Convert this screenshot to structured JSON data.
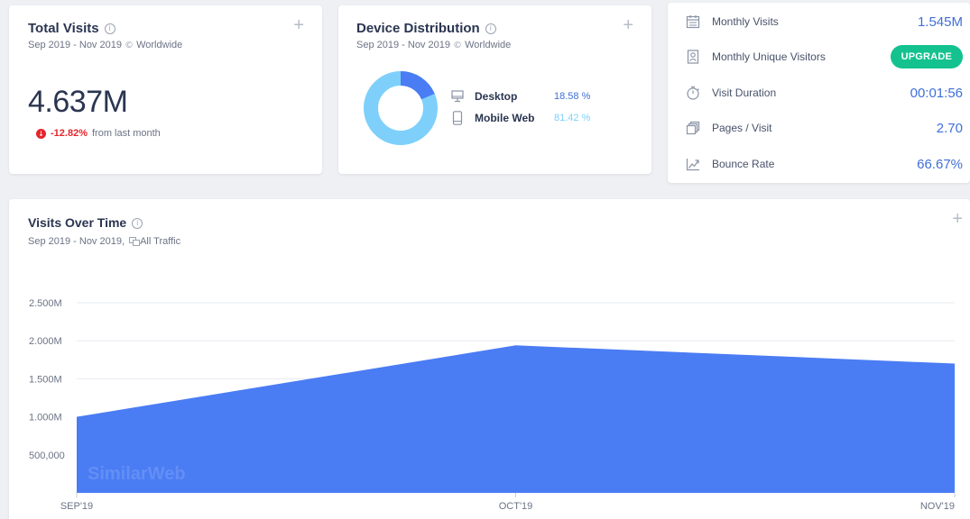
{
  "total_visits": {
    "title": "Total Visits",
    "date_range": "Sep 2019 - Nov 2019",
    "region": "Worldwide",
    "value": "4.637M",
    "change": "-12.82%",
    "change_suffix": "from last month"
  },
  "device_distribution": {
    "title": "Device Distribution",
    "date_range": "Sep 2019 - Nov 2019",
    "region": "Worldwide",
    "devices": [
      {
        "name": "Desktop",
        "value": "18.58 %",
        "share": 18.58,
        "color": "#4a7cf4",
        "icon": "desktop-icon"
      },
      {
        "name": "Mobile Web",
        "value": "81.42 %",
        "share": 81.42,
        "color": "#7ed0fb",
        "icon": "mobile-icon"
      }
    ]
  },
  "metrics": [
    {
      "label": "Monthly Visits",
      "value": "1.545M",
      "icon": "calendar-icon"
    },
    {
      "label": "Monthly Unique Visitors",
      "value": "UPGRADE",
      "icon": "id-card-icon"
    },
    {
      "label": "Visit Duration",
      "value": "00:01:56",
      "icon": "stopwatch-icon"
    },
    {
      "label": "Pages / Visit",
      "value": "2.70",
      "icon": "pages-icon"
    },
    {
      "label": "Bounce Rate",
      "value": "66.67%",
      "icon": "trend-icon"
    }
  ],
  "visits_over_time": {
    "title": "Visits Over Time",
    "date_range": "Sep 2019 - Nov 2019,",
    "traffic": "All Traffic",
    "watermark": "SimilarWeb"
  },
  "chart_data": {
    "type": "area",
    "categories": [
      "SEP'19",
      "OCT'19",
      "NOV'19"
    ],
    "values": [
      1000000,
      1940000,
      1700000
    ],
    "ylim": [
      0,
      2500000
    ],
    "yticks": [
      500000,
      1000000,
      1500000,
      2000000,
      2500000
    ],
    "ytick_labels": [
      "500,000",
      "1.000M",
      "1.500M",
      "2.000M",
      "2.500M"
    ],
    "color": "#4a7cf4",
    "grid": true
  },
  "colors": {
    "accent": "#3f6fd8",
    "negative": "#e4252c",
    "upgrade": "#13c28e"
  }
}
